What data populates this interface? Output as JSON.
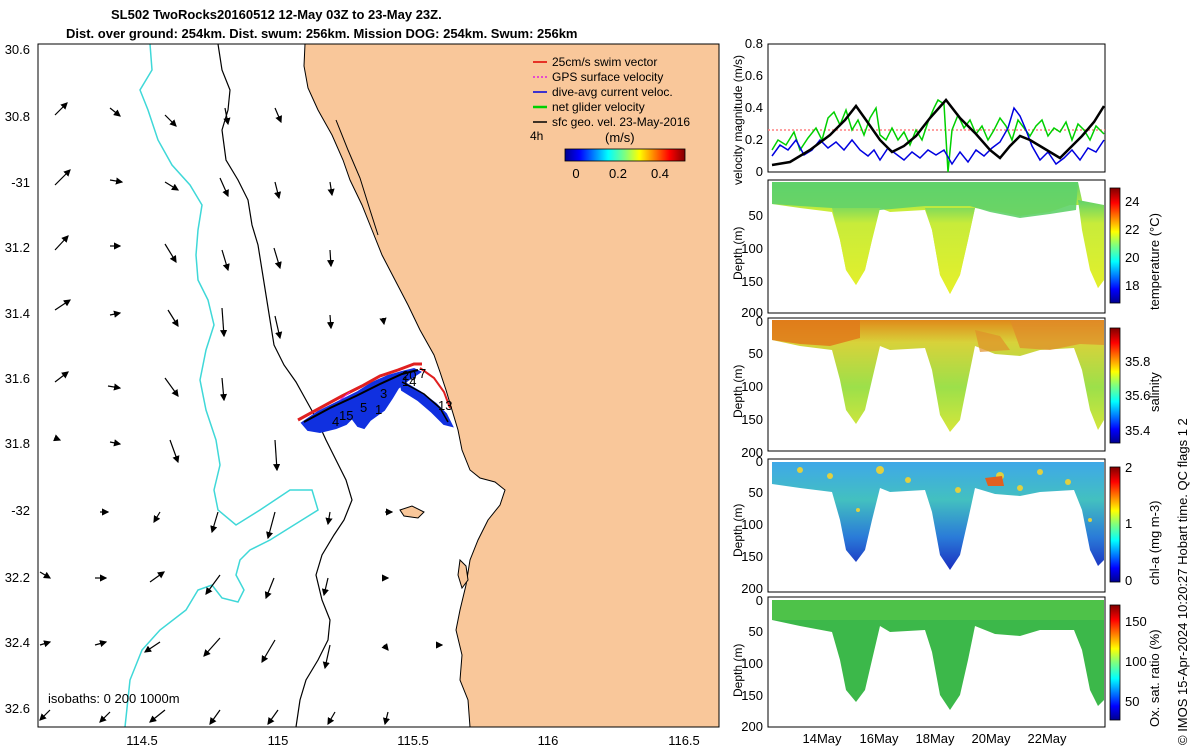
{
  "header": {
    "title_line1": "SL502 TwoRocks20160512 12-May 03Z to 23-May 23Z.",
    "title_line2": "Dist. over ground: 254km. Dist. swum: 256km. Mission DOG: 254km. Swum: 256km"
  },
  "map": {
    "lat_ticks": [
      "30.6",
      "30.8",
      "-31",
      "31.2",
      "31.4",
      "31.6",
      "31.8",
      "-32",
      "32.2",
      "32.4",
      "32.6"
    ],
    "lon_ticks": [
      "114.5",
      "115",
      "115.5",
      "116",
      "116.5"
    ],
    "isobaths_label": "isobaths: 0   200  1000m",
    "legend": [
      {
        "label": "25cm/s swim vector",
        "color": "#e00000"
      },
      {
        "label": "GPS surface velocity",
        "color": "#e020e0"
      },
      {
        "label": "dive-avg current veloc.",
        "color": "#0000e0"
      },
      {
        "label": "net glider velocity",
        "color": "#00d000"
      },
      {
        "label": "sfc geo. vel. 23-May-2016",
        "color": "#000000"
      }
    ],
    "legend_time": "4h",
    "colorbar_title": "(m/s)",
    "colorbar_ticks": [
      "0",
      "0.2",
      "0.4"
    ],
    "track_labels": [
      "20",
      "7",
      "14",
      "1",
      "3",
      "5",
      "15",
      "4",
      "13"
    ],
    "colors": {
      "land": "#f9c79a",
      "isobath_shallow": "#000000",
      "isobath_deep": "#3fd8d8",
      "track": "#1030e0",
      "track_red": "#e02020"
    }
  },
  "panels": {
    "velocity": {
      "ylabel": "velocity magnitude (m/s)",
      "yticks": [
        "0",
        "0.2",
        "0.4",
        "0.6",
        "0.8"
      ]
    },
    "temperature": {
      "ylabel": "Depth (m)",
      "cbar_label": "temperature (°C)",
      "cbar_ticks": [
        "24",
        "22",
        "20",
        "18"
      ],
      "yticks": [
        "50",
        "100",
        "150",
        "200"
      ]
    },
    "salinity": {
      "ylabel": "Depth (m)",
      "cbar_label": "salinity",
      "cbar_ticks": [
        "35.8",
        "35.6",
        "35.4"
      ],
      "yticks": [
        "0",
        "50",
        "100",
        "150",
        "200"
      ]
    },
    "chla": {
      "ylabel": "Depth (m)",
      "cbar_label": "chl-a (mg m-3)",
      "cbar_ticks": [
        "2",
        "1",
        "0"
      ],
      "yticks": [
        "0",
        "50",
        "100",
        "150",
        "200"
      ]
    },
    "oxygen": {
      "ylabel": "Depth (m)",
      "cbar_label": "Ox. sat. ratio (%)",
      "cbar_ticks": [
        "150",
        "100",
        "50"
      ],
      "yticks": [
        "0",
        "50",
        "100",
        "150",
        "200"
      ]
    },
    "x_ticks": [
      "14May",
      "16May",
      "18May",
      "20May",
      "22May"
    ]
  },
  "footer": {
    "credit": "© IMOS 15-Apr-2024 10:20:27 Hobart time. QC flags 1  2"
  }
}
